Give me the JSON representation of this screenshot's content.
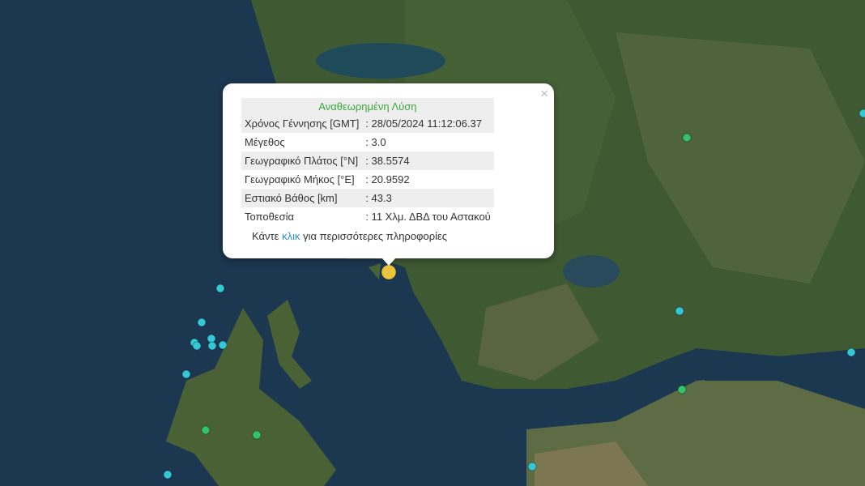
{
  "popup": {
    "title": "Αναθεωρημένη Λύση",
    "close_icon": "×",
    "rows": [
      {
        "label": "Χρόνος Γέννησης [GMT]",
        "value": ": 28/05/2024 11:12:06.37"
      },
      {
        "label": "Μέγεθος",
        "value": ": 3.0"
      },
      {
        "label": "Γεωγραφικό Πλάτος [°N]",
        "value": ": 38.5574"
      },
      {
        "label": "Γεωγραφικό Μήκος [°E]",
        "value": ": 20.9592"
      },
      {
        "label": "Εστιακό Βάθος [km]",
        "value": ": 43.3"
      },
      {
        "label": "Τοποθεσία",
        "value": ": 11 Χλμ. ΔΒΔ του Αστακού"
      }
    ],
    "more_prefix": "Κάντε ",
    "more_link": "κλικ",
    "more_suffix": " για περισσότερες πληροφορίες"
  },
  "colors": {
    "sea": "#1c3750",
    "land": "#3f5a33",
    "selected_marker": "#e8c53a",
    "recent_marker": "#35c7d6",
    "older_marker": "#33c46a"
  }
}
